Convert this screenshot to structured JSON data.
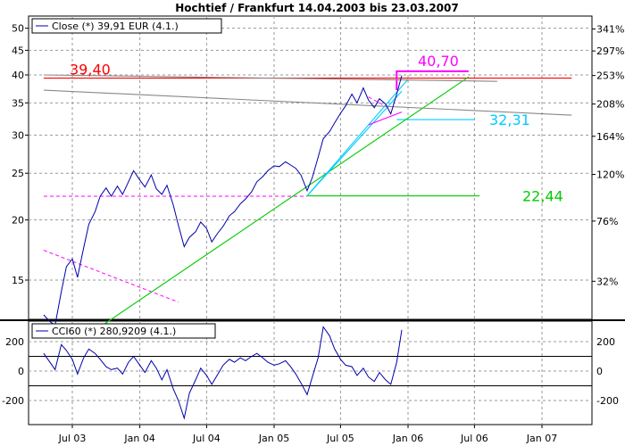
{
  "chart_data": [
    {
      "type": "line",
      "title": "Hochtief / Frankfurt 14.04.2003  bis 23.03.2007",
      "legend": "Close (*) 39,91 EUR (4.1.)",
      "x_ticks": [
        "Jul 03",
        "Jan 04",
        "Jul 04",
        "Jan 05",
        "Jul 05",
        "Jan 06",
        "Jul 06",
        "Jan 07"
      ],
      "y_scale": "log",
      "y_ticks_left": [
        15,
        20,
        25,
        30,
        35,
        40,
        45,
        50
      ],
      "y_ticks_right": [
        "32%",
        "76%",
        "120%",
        "164%",
        "208%",
        "253%",
        "297%",
        "341%"
      ],
      "grid": true,
      "series": [
        {
          "name": "Close",
          "color": "#0000aa",
          "points": [
            [
              "2003-04-14",
              12.7
            ],
            [
              "2003-05-01",
              12.3
            ],
            [
              "2003-05-15",
              12.1
            ],
            [
              "2003-06-01",
              14.2
            ],
            [
              "2003-06-15",
              16.0
            ],
            [
              "2003-07-01",
              16.6
            ],
            [
              "2003-07-15",
              15.2
            ],
            [
              "2003-08-01",
              17.5
            ],
            [
              "2003-08-15",
              19.6
            ],
            [
              "2003-09-01",
              20.8
            ],
            [
              "2003-09-15",
              22.4
            ],
            [
              "2003-10-01",
              23.3
            ],
            [
              "2003-10-15",
              22.4
            ],
            [
              "2003-11-01",
              23.5
            ],
            [
              "2003-11-15",
              22.6
            ],
            [
              "2003-12-01",
              24.0
            ],
            [
              "2003-12-15",
              25.3
            ],
            [
              "2004-01-01",
              24.2
            ],
            [
              "2004-01-15",
              23.4
            ],
            [
              "2004-02-01",
              24.8
            ],
            [
              "2004-02-15",
              23.2
            ],
            [
              "2004-03-01",
              22.6
            ],
            [
              "2004-03-15",
              23.6
            ],
            [
              "2004-04-01",
              21.5
            ],
            [
              "2004-04-15",
              19.5
            ],
            [
              "2004-05-01",
              17.6
            ],
            [
              "2004-05-15",
              18.4
            ],
            [
              "2004-06-01",
              18.9
            ],
            [
              "2004-06-15",
              19.8
            ],
            [
              "2004-07-01",
              19.2
            ],
            [
              "2004-07-15",
              18.0
            ],
            [
              "2004-08-01",
              18.8
            ],
            [
              "2004-08-15",
              19.4
            ],
            [
              "2004-09-01",
              20.4
            ],
            [
              "2004-09-15",
              20.8
            ],
            [
              "2004-10-01",
              21.6
            ],
            [
              "2004-10-15",
              22.1
            ],
            [
              "2004-11-01",
              22.9
            ],
            [
              "2004-11-15",
              24.0
            ],
            [
              "2004-12-01",
              24.6
            ],
            [
              "2004-12-15",
              25.3
            ],
            [
              "2005-01-01",
              25.9
            ],
            [
              "2005-01-15",
              25.8
            ],
            [
              "2005-02-01",
              26.4
            ],
            [
              "2005-02-15",
              26.0
            ],
            [
              "2005-03-01",
              25.6
            ],
            [
              "2005-03-15",
              24.8
            ],
            [
              "2005-04-01",
              23.0
            ],
            [
              "2005-04-15",
              24.5
            ],
            [
              "2005-05-01",
              27.0
            ],
            [
              "2005-05-15",
              29.5
            ],
            [
              "2005-06-01",
              30.5
            ],
            [
              "2005-06-15",
              31.8
            ],
            [
              "2005-07-01",
              33.3
            ],
            [
              "2005-07-15",
              34.5
            ],
            [
              "2005-08-01",
              36.5
            ],
            [
              "2005-08-15",
              35.0
            ],
            [
              "2005-09-01",
              37.6
            ],
            [
              "2005-09-15",
              35.5
            ],
            [
              "2005-10-01",
              34.2
            ],
            [
              "2005-10-15",
              35.7
            ],
            [
              "2005-11-01",
              34.8
            ],
            [
              "2005-11-15",
              33.2
            ],
            [
              "2005-12-01",
              36.5
            ],
            [
              "2005-12-15",
              39.9
            ]
          ]
        }
      ],
      "annotations": [
        {
          "label": "39,40",
          "color": "#ff0000",
          "kind": "horizontal-line",
          "y": 39.4,
          "x_start": "2003-04-14",
          "x_end": "2007-03-23"
        },
        {
          "label": "40,70",
          "color": "#ff00ff",
          "kind": "target-bracket",
          "y": 40.7,
          "x_start": "2005-12-01",
          "x_end": "2006-06-15"
        },
        {
          "label": "32,31",
          "color": "#00ccff",
          "kind": "horizontal-line",
          "y": 32.31,
          "x_start": "2005-12-01",
          "x_end": "2006-07-01"
        },
        {
          "label": "22,44",
          "color": "#00cc00",
          "kind": "horizontal-line",
          "y": 22.44,
          "x_start": "2005-04-01",
          "x_end": "2006-07-15"
        },
        {
          "label": "",
          "color": "#00cc00",
          "kind": "trendline",
          "points": [
            [
              "2003-09-01",
              11.8
            ],
            [
              "2006-06-15",
              39.6
            ]
          ]
        },
        {
          "label": "",
          "color": "#00ccff",
          "kind": "trendline",
          "points": [
            [
              "2005-04-01",
              22.44
            ],
            [
              "2006-01-01",
              39.2
            ]
          ]
        },
        {
          "label": "",
          "color": "#00ccff",
          "kind": "trendline",
          "points": [
            [
              "2005-04-01",
              22.44
            ],
            [
              "2005-12-15",
              37.0
            ]
          ]
        },
        {
          "label": "",
          "color": "#ff00ff",
          "kind": "dashed-line",
          "points": [
            [
              "2003-04-14",
              22.4
            ],
            [
              "2005-04-01",
              22.4
            ]
          ]
        },
        {
          "label": "",
          "color": "#ff00ff",
          "kind": "dashed-line",
          "points": [
            [
              "2003-04-14",
              17.3
            ],
            [
              "2004-04-15",
              13.5
            ]
          ]
        },
        {
          "label": "",
          "color": "#ff00ff",
          "kind": "trendline",
          "points": [
            [
              "2005-09-15",
              31.5
            ],
            [
              "2005-12-15",
              33.5
            ]
          ]
        },
        {
          "label": "",
          "color": "#ff00ff",
          "kind": "dashed-line",
          "points": [
            [
              "2005-09-15",
              36.0
            ],
            [
              "2005-11-15",
              34.0
            ]
          ]
        },
        {
          "label": "",
          "color": "#888888",
          "kind": "trendline",
          "points": [
            [
              "2003-04-14",
              40.0
            ],
            [
              "2006-09-01",
              38.8
            ]
          ]
        },
        {
          "label": "",
          "color": "#888888",
          "kind": "trendline",
          "points": [
            [
              "2003-04-14",
              37.2
            ],
            [
              "2007-03-23",
              33.0
            ]
          ]
        }
      ]
    },
    {
      "type": "line",
      "legend": "CCI60 (*) 280,9209 (4.1.)",
      "y_ticks": [
        200,
        0,
        -200
      ],
      "reference_lines": [
        100,
        -100
      ],
      "series": [
        {
          "name": "CCI60",
          "color": "#0000aa",
          "points": [
            [
              "2003-04-14",
              120
            ],
            [
              "2003-05-01",
              60
            ],
            [
              "2003-05-15",
              10
            ],
            [
              "2003-06-01",
              180
            ],
            [
              "2003-06-15",
              140
            ],
            [
              "2003-07-01",
              80
            ],
            [
              "2003-07-15",
              -20
            ],
            [
              "2003-08-01",
              90
            ],
            [
              "2003-08-15",
              150
            ],
            [
              "2003-09-01",
              120
            ],
            [
              "2003-09-15",
              80
            ],
            [
              "2003-10-01",
              30
            ],
            [
              "2003-10-15",
              10
            ],
            [
              "2003-11-01",
              20
            ],
            [
              "2003-11-15",
              -20
            ],
            [
              "2003-12-01",
              60
            ],
            [
              "2003-12-15",
              100
            ],
            [
              "2004-01-01",
              40
            ],
            [
              "2004-01-15",
              -10
            ],
            [
              "2004-02-01",
              70
            ],
            [
              "2004-02-15",
              20
            ],
            [
              "2004-03-01",
              -60
            ],
            [
              "2004-03-15",
              10
            ],
            [
              "2004-04-01",
              -120
            ],
            [
              "2004-04-15",
              -200
            ],
            [
              "2004-05-01",
              -320
            ],
            [
              "2004-05-15",
              -150
            ],
            [
              "2004-06-01",
              -60
            ],
            [
              "2004-06-15",
              20
            ],
            [
              "2004-07-01",
              -30
            ],
            [
              "2004-07-15",
              -90
            ],
            [
              "2004-08-01",
              -20
            ],
            [
              "2004-08-15",
              40
            ],
            [
              "2004-09-01",
              80
            ],
            [
              "2004-09-15",
              60
            ],
            [
              "2004-10-01",
              90
            ],
            [
              "2004-10-15",
              70
            ],
            [
              "2004-11-01",
              100
            ],
            [
              "2004-11-15",
              120
            ],
            [
              "2004-12-01",
              90
            ],
            [
              "2004-12-15",
              60
            ],
            [
              "2005-01-01",
              40
            ],
            [
              "2005-01-15",
              50
            ],
            [
              "2005-02-01",
              70
            ],
            [
              "2005-02-15",
              30
            ],
            [
              "2005-03-01",
              -20
            ],
            [
              "2005-03-15",
              -80
            ],
            [
              "2005-04-01",
              -160
            ],
            [
              "2005-04-15",
              -40
            ],
            [
              "2005-05-01",
              90
            ],
            [
              "2005-05-15",
              300
            ],
            [
              "2005-06-01",
              240
            ],
            [
              "2005-06-15",
              150
            ],
            [
              "2005-07-01",
              80
            ],
            [
              "2005-07-15",
              40
            ],
            [
              "2005-08-01",
              30
            ],
            [
              "2005-08-15",
              -30
            ],
            [
              "2005-09-01",
              20
            ],
            [
              "2005-09-15",
              -40
            ],
            [
              "2005-10-01",
              -70
            ],
            [
              "2005-10-15",
              -10
            ],
            [
              "2005-11-01",
              -60
            ],
            [
              "2005-11-15",
              -90
            ],
            [
              "2005-12-01",
              60
            ],
            [
              "2005-12-15",
              280
            ]
          ]
        }
      ]
    }
  ]
}
